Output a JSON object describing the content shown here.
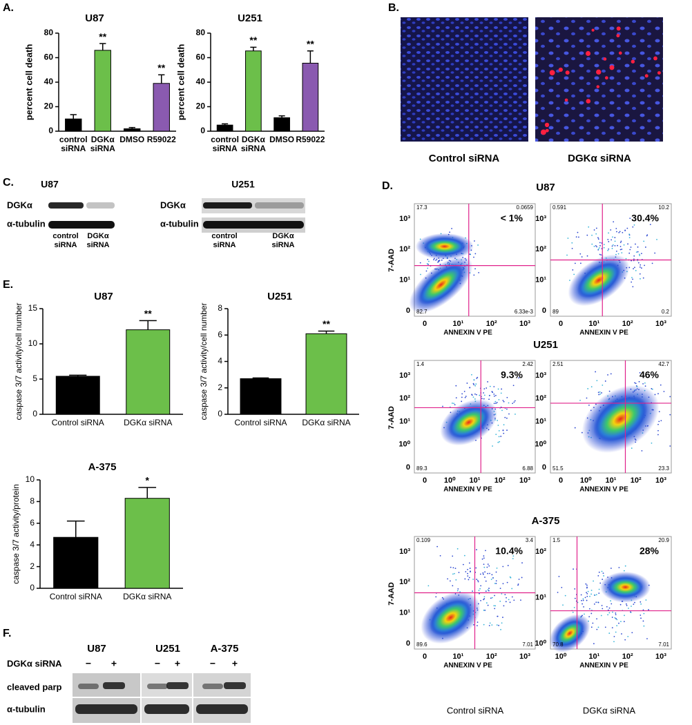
{
  "panel_labels": [
    "A.",
    "B.",
    "C.",
    "D.",
    "E.",
    "F."
  ],
  "chart_data": [
    {
      "type": "bar",
      "title": "U87",
      "y_label": "percent cell death",
      "categories": [
        "control siRNA",
        "DGKα siRNA",
        "DMSO",
        "R59022"
      ],
      "values": [
        10,
        66,
        2,
        39
      ],
      "errors": [
        3.5,
        5.5,
        1,
        7
      ],
      "colors": [
        "#000000",
        "#6cbf4a",
        "#000000",
        "#8a5ab0"
      ],
      "value_annotations": [
        null,
        "**",
        null,
        "**"
      ],
      "ylim": [
        0,
        80
      ],
      "yticks": [
        0,
        20,
        40,
        60,
        80
      ]
    },
    {
      "type": "bar",
      "title": "U251",
      "y_label": "percent cell death",
      "categories": [
        "control siRNA",
        "DGKα siRNA",
        "DMSO",
        "R59022"
      ],
      "values": [
        5,
        65.5,
        11,
        55.5
      ],
      "errors": [
        1,
        3,
        1.5,
        10
      ],
      "colors": [
        "#000000",
        "#6cbf4a",
        "#000000",
        "#8a5ab0"
      ],
      "value_annotations": [
        null,
        "**",
        null,
        "**"
      ],
      "ylim": [
        0,
        80
      ],
      "yticks": [
        0,
        20,
        40,
        60,
        80
      ]
    },
    {
      "type": "bar",
      "title": "U87",
      "y_label": "caspase 3/7 activity/cell number",
      "categories": [
        "Control siRNA",
        "DGKα siRNA"
      ],
      "values": [
        5.4,
        12
      ],
      "errors": [
        0.15,
        1.3
      ],
      "colors": [
        "#000000",
        "#6cbf4a"
      ],
      "value_annotations": [
        null,
        "**"
      ],
      "ylim": [
        0,
        15
      ],
      "yticks": [
        0,
        5,
        10,
        15
      ]
    },
    {
      "type": "bar",
      "title": "U251",
      "y_label": "caspase 3/7 activity/cell number",
      "categories": [
        "Control siRNA",
        "DGKα siRNA"
      ],
      "values": [
        2.7,
        6.1
      ],
      "errors": [
        0.05,
        0.2
      ],
      "colors": [
        "#000000",
        "#6cbf4a"
      ],
      "value_annotations": [
        null,
        "**"
      ],
      "ylim": [
        0,
        8
      ],
      "yticks": [
        0,
        2,
        4,
        6,
        8
      ]
    },
    {
      "type": "bar",
      "title": "A-375",
      "y_label": "caspase 3/7 activity/protein",
      "categories": [
        "Control siRNA",
        "DGKα siRNA"
      ],
      "values": [
        4.7,
        8.3
      ],
      "errors": [
        1.5,
        1.0
      ],
      "colors": [
        "#000000",
        "#6cbf4a"
      ],
      "value_annotations": [
        null,
        "*"
      ],
      "ylim": [
        0,
        10
      ],
      "yticks": [
        0,
        2,
        4,
        6,
        8,
        10
      ]
    }
  ],
  "panel_b": {
    "captions": [
      "Control siRNA",
      "DGKα siRNA"
    ]
  },
  "panel_c": {
    "blots": [
      {
        "title": "U87",
        "rows": [
          "DGKα",
          "α-tubulin"
        ],
        "lanes": [
          "control siRNA",
          "DGKα siRNA"
        ]
      },
      {
        "title": "U251",
        "rows": [
          "DGKα",
          "α-tubulin"
        ],
        "lanes": [
          "control siRNA",
          "DGKα siRNA"
        ]
      }
    ]
  },
  "panel_d": {
    "y_label": "7-AAD",
    "x_label": "ANNEXIN V PE",
    "captions": [
      "Control siRNA",
      "DGKα siRNA"
    ],
    "groups": [
      {
        "title": "U87",
        "plots": [
          {
            "percent": "< 1%",
            "quadrants": [
              "17.3",
              "0.0659",
              "82.7",
              "6.33e-3"
            ],
            "yticks": [
              "10³",
              "10²",
              "10¹",
              "0"
            ],
            "xticks": [
              "0",
              "10¹",
              "10²",
              "10³"
            ]
          },
          {
            "percent": "30.4%",
            "quadrants": [
              "0.591",
              "10.2",
              "89",
              "0.2"
            ],
            "yticks": [
              "10³",
              "10²",
              "10¹",
              "0"
            ],
            "xticks": [
              "0",
              "10¹",
              "10²",
              "10³"
            ]
          }
        ]
      },
      {
        "title": "U251",
        "plots": [
          {
            "percent": "9.3%",
            "quadrants": [
              "1.4",
              "2.42",
              "89.3",
              "6.88"
            ],
            "yticks": [
              "10³",
              "10²",
              "10¹",
              "10⁰",
              "0"
            ],
            "xticks": [
              "0",
              "10⁰",
              "10¹",
              "10²",
              "10³"
            ]
          },
          {
            "percent": "46%",
            "quadrants": [
              "2.51",
              "42.7",
              "51.5",
              "23.3"
            ],
            "yticks": [
              "10³",
              "10²",
              "10¹",
              "10⁰",
              "0"
            ],
            "xticks": [
              "0",
              "10⁰",
              "10¹",
              "10²",
              "10³"
            ]
          }
        ]
      },
      {
        "title": "A-375",
        "plots": [
          {
            "percent": "10.4%",
            "quadrants": [
              "0.109",
              "3.4",
              "89.6",
              "7.01"
            ],
            "yticks": [
              "10³",
              "10²",
              "10¹",
              "0"
            ],
            "xticks": [
              "0",
              "10¹",
              "10²",
              "10³"
            ]
          },
          {
            "percent": "28%",
            "quadrants": [
              "1.5",
              "20.9",
              "70.8",
              "7.01"
            ],
            "yticks": [
              "10²",
              "10¹",
              "10⁰"
            ],
            "xticks": [
              "10⁰",
              "10¹",
              "10²",
              "10³"
            ]
          }
        ]
      }
    ]
  },
  "panel_f": {
    "columns": [
      "U87",
      "U251",
      "A-375"
    ],
    "row_labels": [
      "DGKα siRNA",
      "cleaved parp",
      "α-tubulin"
    ],
    "signs": [
      [
        "−",
        "+"
      ],
      [
        "−",
        "+"
      ],
      [
        "−",
        "+"
      ]
    ]
  }
}
